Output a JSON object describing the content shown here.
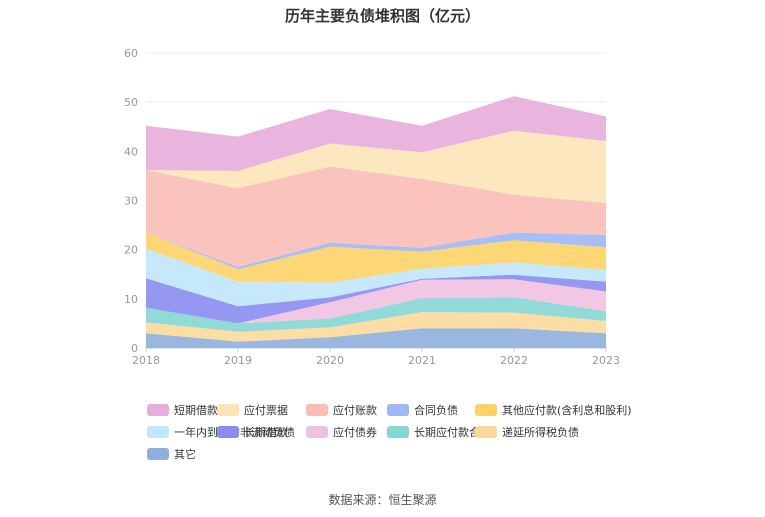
{
  "chart_data": {
    "type": "area",
    "stacked": true,
    "title": "历年主要负债堆积图（亿元）",
    "x": [
      "2018",
      "2019",
      "2020",
      "2021",
      "2022",
      "2023"
    ],
    "ylim": [
      0,
      60
    ],
    "yticks": [
      0,
      10,
      20,
      30,
      40,
      50,
      60
    ],
    "grid": true,
    "legend_position": "bottom",
    "series": [
      {
        "name": "其它",
        "color": "#8fb0dc",
        "values": [
          3.0,
          1.3,
          2.2,
          4.0,
          4.0,
          3.0
        ]
      },
      {
        "name": "递延所得税负债",
        "color": "#fcd99a",
        "values": [
          2.2,
          2.0,
          2.0,
          3.3,
          3.2,
          2.5
        ]
      },
      {
        "name": "长期应付款合计",
        "color": "#86d6d4",
        "values": [
          3.0,
          1.7,
          1.8,
          2.8,
          3.1,
          2.0
        ]
      },
      {
        "name": "应付债券",
        "color": "#efc1e0",
        "values": [
          0.0,
          0.0,
          3.3,
          3.8,
          3.7,
          4.0
        ]
      },
      {
        "name": "长期借款",
        "color": "#8b8cf0",
        "values": [
          6.0,
          3.5,
          1.0,
          0.2,
          0.9,
          2.0
        ]
      },
      {
        "name": "一年内到期的非流动负债",
        "color": "#bfe7fb",
        "values": [
          6.0,
          5.0,
          3.0,
          2.0,
          2.5,
          2.4
        ]
      },
      {
        "name": "其他应付款(含利息和股利)",
        "color": "#fdd167",
        "values": [
          3.3,
          2.5,
          7.3,
          3.5,
          4.5,
          4.6
        ]
      },
      {
        "name": "合同负债",
        "color": "#9fb8f5",
        "values": [
          0.0,
          0.5,
          0.8,
          0.8,
          1.6,
          2.5
        ]
      },
      {
        "name": "应付账款",
        "color": "#fbbcb6",
        "values": [
          12.7,
          16.0,
          15.5,
          14.0,
          7.7,
          6.5
        ]
      },
      {
        "name": "应付票据",
        "color": "#fde4b8",
        "values": [
          0.0,
          3.5,
          4.7,
          5.4,
          13.0,
          12.6
        ]
      },
      {
        "name": "短期借款",
        "color": "#e7addb",
        "values": [
          9.0,
          7.0,
          7.0,
          5.4,
          7.0,
          5.0
        ]
      }
    ]
  },
  "legend_order": [
    "短期借款",
    "应付票据",
    "应付账款",
    "合同负债",
    "其他应付款(含利息和股利)",
    "一年内到期的非流动负债",
    "长期借款",
    "应付债券",
    "长期应付款合计",
    "递延所得税负债",
    "其它"
  ],
  "source": "数据来源：恒生聚源"
}
